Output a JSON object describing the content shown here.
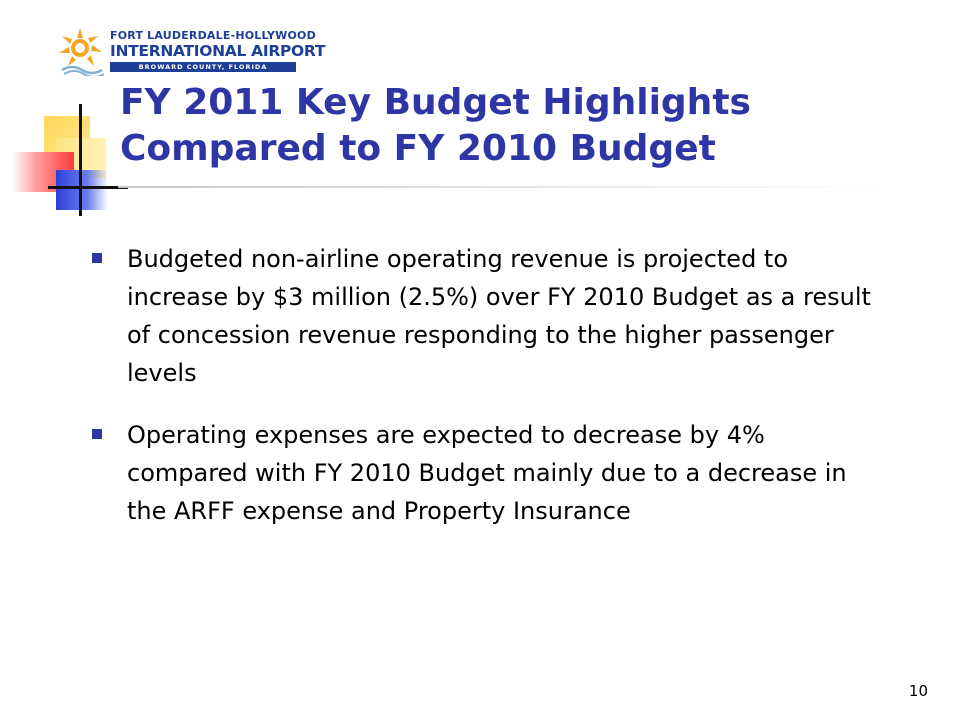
{
  "logo": {
    "line1": "FORT LAUDERDALE-HOLLYWOOD",
    "line2": "INTERNATIONAL AIRPORT",
    "line3": "BROWARD COUNTY, FLORIDA"
  },
  "title": {
    "line1": "FY 2011 Key Budget Highlights",
    "line2": "Compared to FY 2010 Budget"
  },
  "bullets": [
    {
      "text": "Budgeted non-airline operating revenue is projected to increase by $3 million (2.5%) over FY 2010 Budget as a result of concession revenue responding to the higher passenger levels"
    },
    {
      "text": "Operating expenses are expected to decrease by 4% compared with FY 2010 Budget mainly due to a decrease in the ARFF expense and Property Insurance"
    }
  ],
  "page_number": "10",
  "colors": {
    "title": "#2e36a5",
    "bullet": "#2e36a5",
    "logo_blue": "#1f3f96",
    "logo_sun": "#f5a623"
  }
}
